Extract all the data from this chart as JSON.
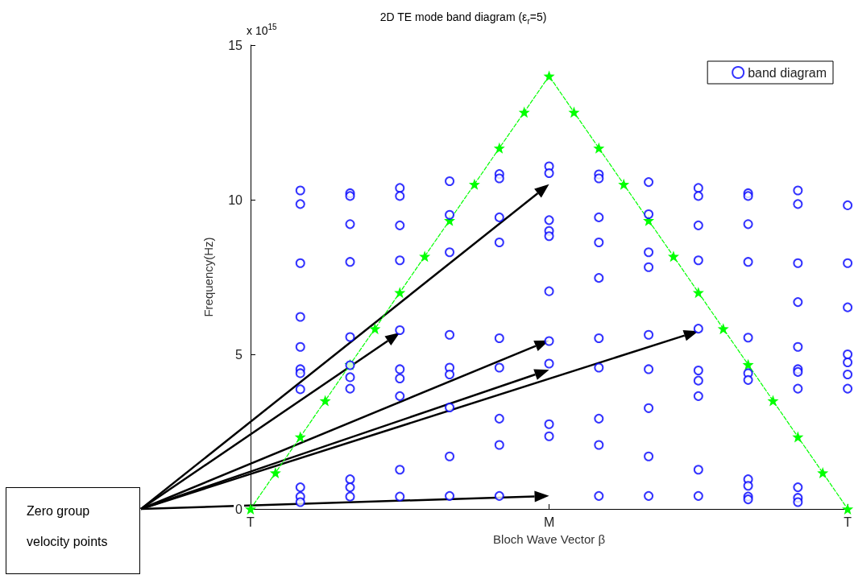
{
  "chart_data": {
    "type": "scatter",
    "title": "2D TE mode band diagram (ε$_{r}$=5)",
    "xlabel": "Bloch Wave Vector β",
    "ylabel": "Frequency(Hz)",
    "annotations": [
      "x 10$^{15}$",
      "Zero group velocity points"
    ],
    "categories": [
      "T",
      null,
      null,
      null,
      null,
      null,
      null,
      null,
      null,
      null,
      null,
      null,
      "M",
      null,
      null,
      null,
      null,
      null,
      null,
      null,
      null,
      null,
      null,
      null,
      "T"
    ],
    "ylim": [
      0,
      15
    ],
    "yticks": [
      0,
      5,
      10,
      15
    ],
    "grid": false,
    "legend": "top right",
    "marker": "circle",
    "series": [
      {
        "name": "band diagram",
        "color": "#0000ff",
        "values": [
          null,
          null,
          10.3,
          null,
          10.21,
          null,
          10.38,
          null,
          10.6,
          null,
          10.83,
          null,
          11.08,
          null,
          10.82,
          null,
          10.57,
          null,
          10.38,
          null,
          10.21,
          null,
          10.3,
          null,
          9.82
        ]
      },
      {
        "color": "#0000ff",
        "values": [
          null,
          null,
          9.86,
          null,
          10.12,
          null,
          10.12,
          null,
          9.51,
          null,
          10.69,
          null,
          10.86,
          null,
          10.69,
          null,
          9.53,
          null,
          10.12,
          null,
          10.12,
          null,
          9.86,
          null,
          7.95
        ]
      },
      {
        "color": "#0000ff",
        "values": [
          null,
          null,
          7.95,
          null,
          9.21,
          null,
          9.17,
          null,
          8.3,
          null,
          9.43,
          null,
          9.34,
          null,
          9.43,
          null,
          8.3,
          null,
          9.17,
          null,
          9.21,
          null,
          7.95,
          null,
          6.52
        ]
      },
      {
        "color": "#0000ff",
        "values": [
          null,
          null,
          6.21,
          null,
          7.99,
          null,
          8.04,
          null,
          5.63,
          null,
          8.62,
          null,
          8.99,
          null,
          8.62,
          null,
          7.82,
          null,
          8.04,
          null,
          7.99,
          null,
          6.69,
          null,
          5
        ]
      },
      {
        "color": "#0000ff",
        "values": [
          null,
          null,
          5.24,
          null,
          5.56,
          null,
          5.78,
          null,
          4.57,
          null,
          5.52,
          null,
          8.82,
          null,
          7.47,
          null,
          5.63,
          null,
          5.83,
          null,
          5.54,
          null,
          5.24,
          null,
          4.74
        ]
      },
      {
        "color": "#0000ff",
        "values": [
          null,
          null,
          4.52,
          null,
          4.65,
          null,
          4.52,
          null,
          4.35,
          null,
          4.57,
          null,
          7.04,
          null,
          5.52,
          null,
          4.52,
          null,
          4.48,
          null,
          4.39,
          null,
          4.52,
          null,
          4.35
        ]
      },
      {
        "color": "#0000ff",
        "values": [
          null,
          null,
          4.39,
          null,
          4.26,
          null,
          4.22,
          null,
          3.28,
          null,
          2.92,
          null,
          5.43,
          null,
          4.57,
          null,
          3.26,
          null,
          4.15,
          null,
          4.17,
          null,
          4.43,
          null,
          3.89
        ]
      },
      {
        "color": "#0000ff",
        "values": [
          null,
          null,
          3.87,
          null,
          3.89,
          null,
          3.65,
          null,
          1.7,
          null,
          2.07,
          null,
          4.7,
          null,
          2.92,
          null,
          1.7,
          null,
          3.65,
          null,
          0.96,
          null,
          3.89,
          null,
          null
        ]
      },
      {
        "color": "#0000ff",
        "values": [
          null,
          null,
          0.7,
          null,
          0.96,
          null,
          1.27,
          null,
          0.42,
          null,
          0.42,
          null,
          2.74,
          null,
          2.07,
          null,
          0.42,
          null,
          1.27,
          null,
          0.75,
          null,
          0.7,
          null,
          null
        ]
      },
      {
        "color": "#0000ff",
        "values": [
          null,
          null,
          0.4,
          null,
          0.7,
          null,
          0.4,
          null,
          null,
          null,
          null,
          null,
          2.35,
          null,
          0.42,
          null,
          null,
          null,
          0.42,
          null,
          0.4,
          null,
          0.36,
          null,
          null
        ]
      },
      {
        "color": "#0000ff",
        "values": [
          null,
          null,
          0.22,
          null,
          0.4,
          null,
          null,
          null,
          null,
          null,
          null,
          null,
          null,
          null,
          null,
          null,
          null,
          null,
          null,
          null,
          0.31,
          null,
          0.22,
          null,
          null
        ]
      },
      {
        "type": "line",
        "color": "#00ff00",
        "marker": "star",
        "line_style": "dashed",
        "values": [
          0,
          1.17,
          2.33,
          3.5,
          4.67,
          5.83,
          7,
          8.17,
          9.33,
          10.5,
          11.67,
          12.83,
          14,
          12.83,
          11.67,
          10.5,
          9.33,
          8.17,
          7,
          5.83,
          4.67,
          3.5,
          2.33,
          1.17,
          0
        ]
      }
    ]
  }
}
